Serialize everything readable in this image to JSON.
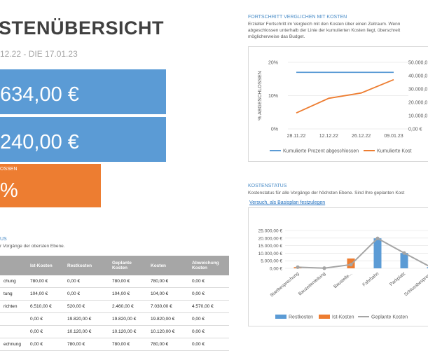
{
  "header": {
    "title": "STENÜBERSICHT",
    "date_range": "12.22 -   DIE 17.01.23"
  },
  "tiles": {
    "tile1_value": "634,00 €",
    "tile2_value": "240,00 €",
    "tile3_label": "OSSEN",
    "tile3_value": "%"
  },
  "table_section": {
    "title": "US",
    "subtitle": "r Vorgänge der obersten Ebene.",
    "headers": [
      "",
      "Ist-Kosten",
      "Restkosten",
      "Geplante Kosten",
      "Kosten",
      "Abweichung Kosten"
    ],
    "rows": [
      [
        "chung",
        "780,00 €",
        "0,00 €",
        "780,00 €",
        "780,00 €",
        "0,00 €"
      ],
      [
        "tung",
        "104,00 €",
        "0,00 €",
        "104,00 €",
        "104,00 €",
        "0,00 €"
      ],
      [
        "richten",
        "6.510,00 €",
        "520,00 €",
        "2.460,00 €",
        "7.030,00 €",
        "4.570,00 €"
      ],
      [
        "",
        "0,00 €",
        "19.820,00 €",
        "19.820,00 €",
        "19.820,00 €",
        "0,00 €"
      ],
      [
        "",
        "0,00 €",
        "10.120,00 €",
        "10.120,00 €",
        "10.120,00 €",
        "0,00 €"
      ],
      [
        "echnung",
        "0,00 €",
        "780,00 €",
        "780,00 €",
        "780,00 €",
        "0,00 €"
      ]
    ]
  },
  "progress_section": {
    "title": "FORTSCHRITT VERGLICHEN MIT KOSTEN",
    "desc_line1": "Erzielter Fortschritt im Vergleich mit den Kosten über einen Zeitraum. Wenn",
    "desc_line2": "abgeschlossen unterhalb der Linie der kumulierten Kosten liegt, überschreit",
    "desc_line3": "möglicherweise das Budget."
  },
  "cost_section": {
    "title": "KOSTENSTATUS",
    "subtitle": "Kostenstatus für alle Vorgänge der höchsten Ebene. Sind Ihre geplanten Kost",
    "link": "Versuch, als Basisplan festzulegen"
  },
  "chart_data": [
    {
      "type": "line",
      "x": [
        "28.11.22",
        "12.12.22",
        "26.12.22",
        "09.01.23"
      ],
      "ylabel": "% ABGESCHLOSSEN",
      "y_ticks": [
        "0%",
        "10%",
        "20%"
      ],
      "y2_ticks": [
        "0,00 €",
        "10.000,0",
        "20.000,0",
        "30.000,0",
        "40.000,0",
        "50.000,0"
      ],
      "ylim": [
        0,
        20
      ],
      "y2lim": [
        0,
        50000
      ],
      "series": [
        {
          "name": "Kumulierte Prozent abgeschlossen",
          "color": "#5b9bd5",
          "axis": "left",
          "values": [
            17,
            17,
            17,
            17
          ]
        },
        {
          "name": "Kumulierte Kost",
          "color": "#ed7d31",
          "axis": "right",
          "values": [
            12000,
            23000,
            27000,
            37000
          ]
        }
      ]
    },
    {
      "type": "bar",
      "categories": [
        "Startbesprechung",
        "Bauzeitenleitung",
        "Baustelle...",
        "Fahrbahn",
        "Parkplatz",
        "Schlussbesprech"
      ],
      "y_ticks": [
        "0,00 €",
        "5.000,00 €",
        "10.000,00 €",
        "15.000,00 €",
        "20.000,00 €",
        "25.000,00 €"
      ],
      "ylim": [
        0,
        25000
      ],
      "series": [
        {
          "name": "Restkosten",
          "color": "#5b9bd5",
          "values": [
            0,
            0,
            520,
            19820,
            10120,
            780
          ]
        },
        {
          "name": "Ist-Kosten",
          "color": "#ed7d31",
          "values": [
            780,
            104,
            6510,
            0,
            0,
            0
          ]
        },
        {
          "name": "Geplante Kosten",
          "color": "#a5a5a5",
          "values": [
            780,
            104,
            2460,
            19820,
            10120,
            780
          ]
        }
      ]
    }
  ]
}
